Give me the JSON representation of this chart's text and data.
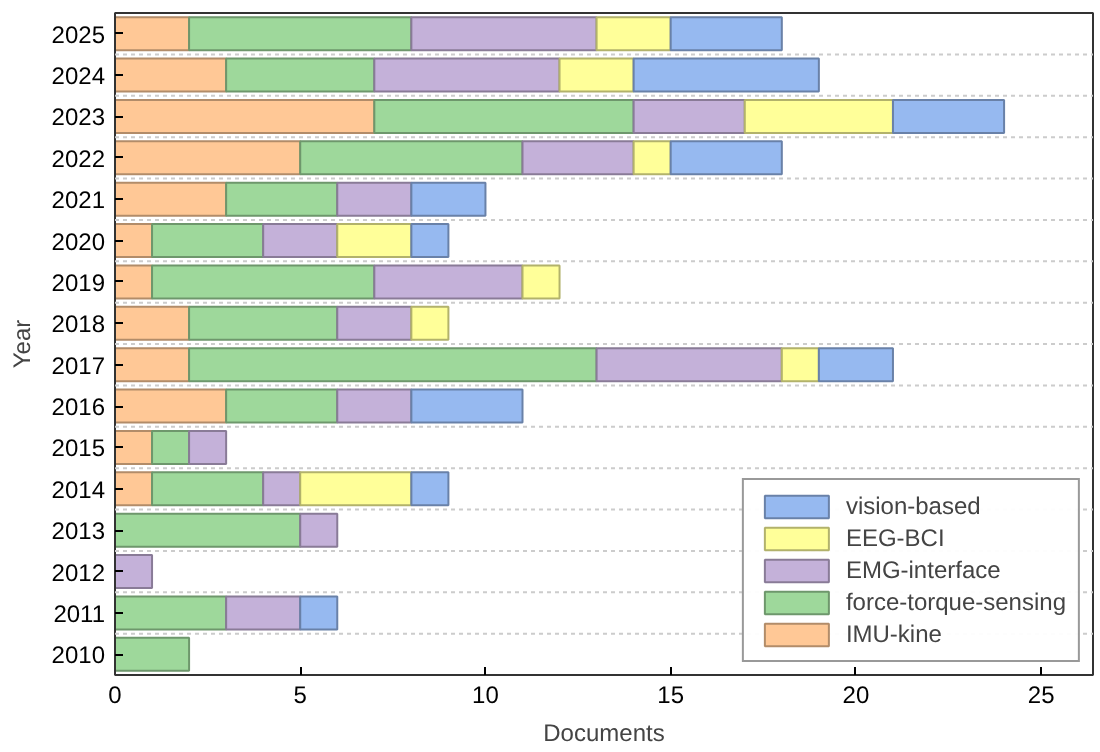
{
  "chart_data": {
    "type": "bar",
    "orientation": "horizontal",
    "stacked": true,
    "xlabel": "Documents",
    "ylabel": "Year",
    "categories": [
      "2025",
      "2024",
      "2023",
      "2022",
      "2021",
      "2020",
      "2019",
      "2018",
      "2017",
      "2016",
      "2015",
      "2014",
      "2013",
      "2012",
      "2011",
      "2010"
    ],
    "series": [
      {
        "name": "IMU-kine",
        "color": "#ffc896",
        "values": [
          2,
          3,
          7,
          5,
          3,
          1,
          1,
          2,
          2,
          3,
          1,
          1,
          0,
          0,
          0,
          0
        ]
      },
      {
        "name": "force-torque-sensing",
        "color": "#9ed89b",
        "values": [
          6,
          4,
          7,
          6,
          3,
          3,
          6,
          4,
          11,
          3,
          1,
          3,
          5,
          0,
          3,
          2
        ]
      },
      {
        "name": "EMG-interface",
        "color": "#c4b1d9",
        "values": [
          5,
          5,
          3,
          3,
          2,
          2,
          4,
          2,
          5,
          2,
          1,
          1,
          1,
          1,
          2,
          0
        ]
      },
      {
        "name": "EEG-BCI",
        "color": "#ffff99",
        "values": [
          2,
          2,
          4,
          1,
          0,
          2,
          1,
          1,
          1,
          0,
          0,
          3,
          0,
          0,
          0,
          0
        ]
      },
      {
        "name": "vision-based",
        "color": "#96b9f0",
        "values": [
          3,
          5,
          3,
          3,
          2,
          1,
          0,
          0,
          2,
          3,
          0,
          1,
          0,
          0,
          1,
          0
        ]
      }
    ],
    "xlim": [
      0,
      26.4
    ],
    "xticks": [
      0,
      5,
      10,
      15,
      20,
      25
    ],
    "grid": "y",
    "legend": "bottom right"
  }
}
